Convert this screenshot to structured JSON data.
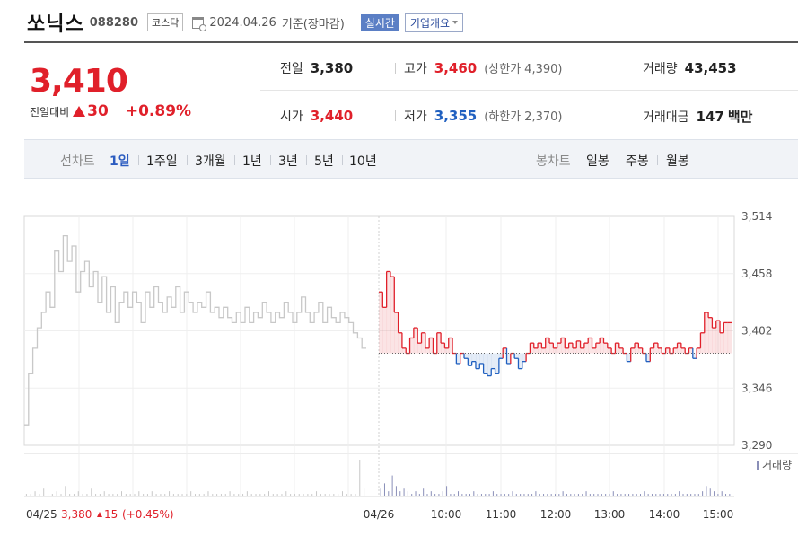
{
  "header": {
    "name": "쏘닉스",
    "code": "088280",
    "market": "코스닥",
    "date": "2024.04.26",
    "basis": "기준(장마감)",
    "live_label": "실시간",
    "info_label": "기업개요"
  },
  "quote": {
    "price": "3,410",
    "change_label": "전일대비",
    "change": "30",
    "change_pct": "+0.89%",
    "prev_label": "전일",
    "prev": "3,380",
    "high_label": "고가",
    "high": "3,460",
    "upper_label": "(상한가",
    "upper": "4,390)",
    "volume_label": "거래량",
    "volume": "43,453",
    "open_label": "시가",
    "open": "3,440",
    "low_label": "저가",
    "low": "3,355",
    "lower_label": "(하한가",
    "lower": "2,370)",
    "amount_label": "거래대금",
    "amount": "147",
    "amount_unit": "백만"
  },
  "tabs": {
    "line_label": "선차트",
    "line_periods": [
      "1일",
      "1주일",
      "3개월",
      "1년",
      "3년",
      "5년",
      "10년"
    ],
    "active": "1일",
    "candle_label": "봉차트",
    "candle_periods": [
      "일봉",
      "주봉",
      "월봉"
    ]
  },
  "colors": {
    "up": "#e0202a",
    "down": "#2060c0",
    "prev": "#c8c8c8"
  },
  "chart_data": {
    "type": "line",
    "title": "",
    "xlabel": "",
    "ylabel": "",
    "ylim": [
      3290,
      3514
    ],
    "y_ticks": [
      "3,514",
      "3,458",
      "3,402",
      "3,346",
      "3,290"
    ],
    "x_ticks": [
      "04/26",
      "10:00",
      "11:00",
      "12:00",
      "13:00",
      "14:00",
      "15:00"
    ],
    "baseline": 3380,
    "volume_label": "거래량",
    "prev_day": {
      "date": "04/25",
      "close": "3,380",
      "change": "15",
      "change_pct": "(+0.45%)"
    },
    "series": [
      {
        "values": [
          3310,
          3360,
          3385,
          3405,
          3420,
          3440,
          3425,
          3480,
          3460,
          3495,
          3470,
          3485,
          3440,
          3460,
          3470,
          3445,
          3460,
          3430,
          3455,
          3420,
          3445,
          3410,
          3430,
          3440,
          3425,
          3440,
          3430,
          3410,
          3440,
          3425,
          3445,
          3430,
          3420,
          3435,
          3425,
          3445,
          3420,
          3440,
          3430,
          3420,
          3430,
          3425,
          3440,
          3420,
          3425,
          3415,
          3425,
          3415,
          3410,
          3420,
          3410,
          3425,
          3410,
          3420,
          3415,
          3430,
          3420,
          3410,
          3420,
          3415,
          3430,
          3420,
          3410,
          3420,
          3435,
          3420,
          3410,
          3420,
          3430,
          3410,
          3425,
          3415,
          3410,
          3420,
          3415,
          3410,
          3400,
          3395,
          3385
        ]
      },
      {
        "values": [
          3440,
          3425,
          3460,
          3455,
          3420,
          3400,
          3385,
          3380,
          3395,
          3405,
          3390,
          3400,
          3385,
          3395,
          3380,
          3400,
          3390,
          3385,
          3395,
          3380,
          3370,
          3380,
          3375,
          3368,
          3372,
          3365,
          3370,
          3360,
          3358,
          3365,
          3360,
          3375,
          3385,
          3370,
          3380,
          3375,
          3365,
          3372,
          3380,
          3390,
          3385,
          3390,
          3385,
          3395,
          3390,
          3385,
          3390,
          3395,
          3385,
          3390,
          3385,
          3392,
          3385,
          3390,
          3395,
          3385,
          3390,
          3395,
          3390,
          3385,
          3380,
          3390,
          3385,
          3380,
          3372,
          3385,
          3390,
          3385,
          3380,
          3372,
          3385,
          3390,
          3385,
          3380,
          3385,
          3380,
          3385,
          3390,
          3385,
          3380,
          3385,
          3375,
          3385,
          3400,
          3420,
          3415,
          3405,
          3412,
          3400,
          3410,
          3410
        ]
      }
    ],
    "volume": {
      "prev": [
        1,
        1,
        2,
        1,
        3,
        1,
        1,
        2,
        1,
        4,
        1,
        1,
        2,
        1,
        1,
        3,
        1,
        1,
        2,
        1,
        1,
        1,
        2,
        1,
        1,
        1,
        2,
        1,
        1,
        2,
        1,
        1,
        1,
        2,
        1,
        1,
        1,
        1,
        2,
        1,
        1,
        1,
        2,
        1,
        1,
        1,
        1,
        2,
        1,
        1,
        1,
        2,
        1,
        1,
        1,
        1,
        2,
        1,
        1,
        1,
        2,
        1,
        1,
        1,
        1,
        1,
        1,
        2,
        1,
        1,
        1,
        1,
        1,
        2,
        1,
        1,
        1,
        14,
        3
      ],
      "today": [
        3,
        5,
        2,
        8,
        4,
        2,
        3,
        2,
        1,
        2,
        1,
        3,
        1,
        2,
        1,
        1,
        2,
        4,
        1,
        1,
        2,
        1,
        1,
        1,
        2,
        1,
        1,
        1,
        1,
        2,
        1,
        1,
        1,
        1,
        2,
        1,
        1,
        1,
        1,
        1,
        2,
        1,
        1,
        1,
        1,
        1,
        1,
        2,
        1,
        1,
        1,
        1,
        1,
        2,
        1,
        1,
        1,
        1,
        1,
        1,
        2,
        1,
        1,
        1,
        1,
        1,
        1,
        1,
        2,
        1,
        1,
        1,
        1,
        1,
        1,
        1,
        1,
        2,
        1,
        1,
        1,
        1,
        1,
        2,
        4,
        3,
        2,
        1,
        2,
        1,
        1
      ]
    }
  }
}
